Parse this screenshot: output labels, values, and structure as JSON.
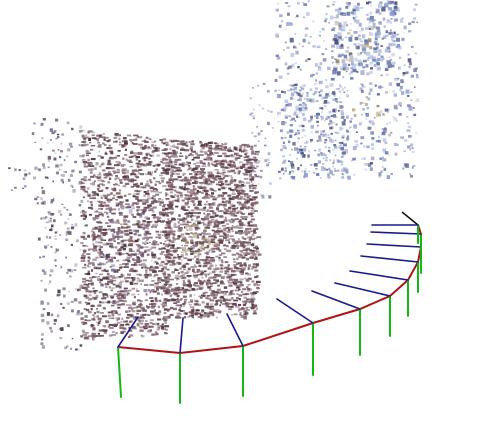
{
  "scene": {
    "background": "#ffffff",
    "trajectory_color": "#b01414",
    "axis_colors": {
      "x": "#b01414",
      "y": "#14b814",
      "z": "#1a1a90"
    },
    "point_palettes": {
      "left_structure": [
        "#7a6a8f",
        "#6e5a6e",
        "#5a4a5c",
        "#8a7aa0",
        "#6a6a9a",
        "#4e3e50"
      ],
      "center_structure": [
        "#5e3e4a",
        "#6e4a56",
        "#7a5a66",
        "#4e3440",
        "#8a6a70",
        "#9a8a9a"
      ],
      "far_structure": [
        "#8a9ad0",
        "#a0acd8",
        "#6e7eb8",
        "#5a6a9e",
        "#b8c0e0",
        "#4a5080"
      ],
      "far_wall": [
        "#7a7aa8",
        "#9a9ac8",
        "#5a5a80"
      ],
      "highlights": [
        "#c0b090",
        "#a09070",
        "#d0c8a8"
      ]
    }
  }
}
